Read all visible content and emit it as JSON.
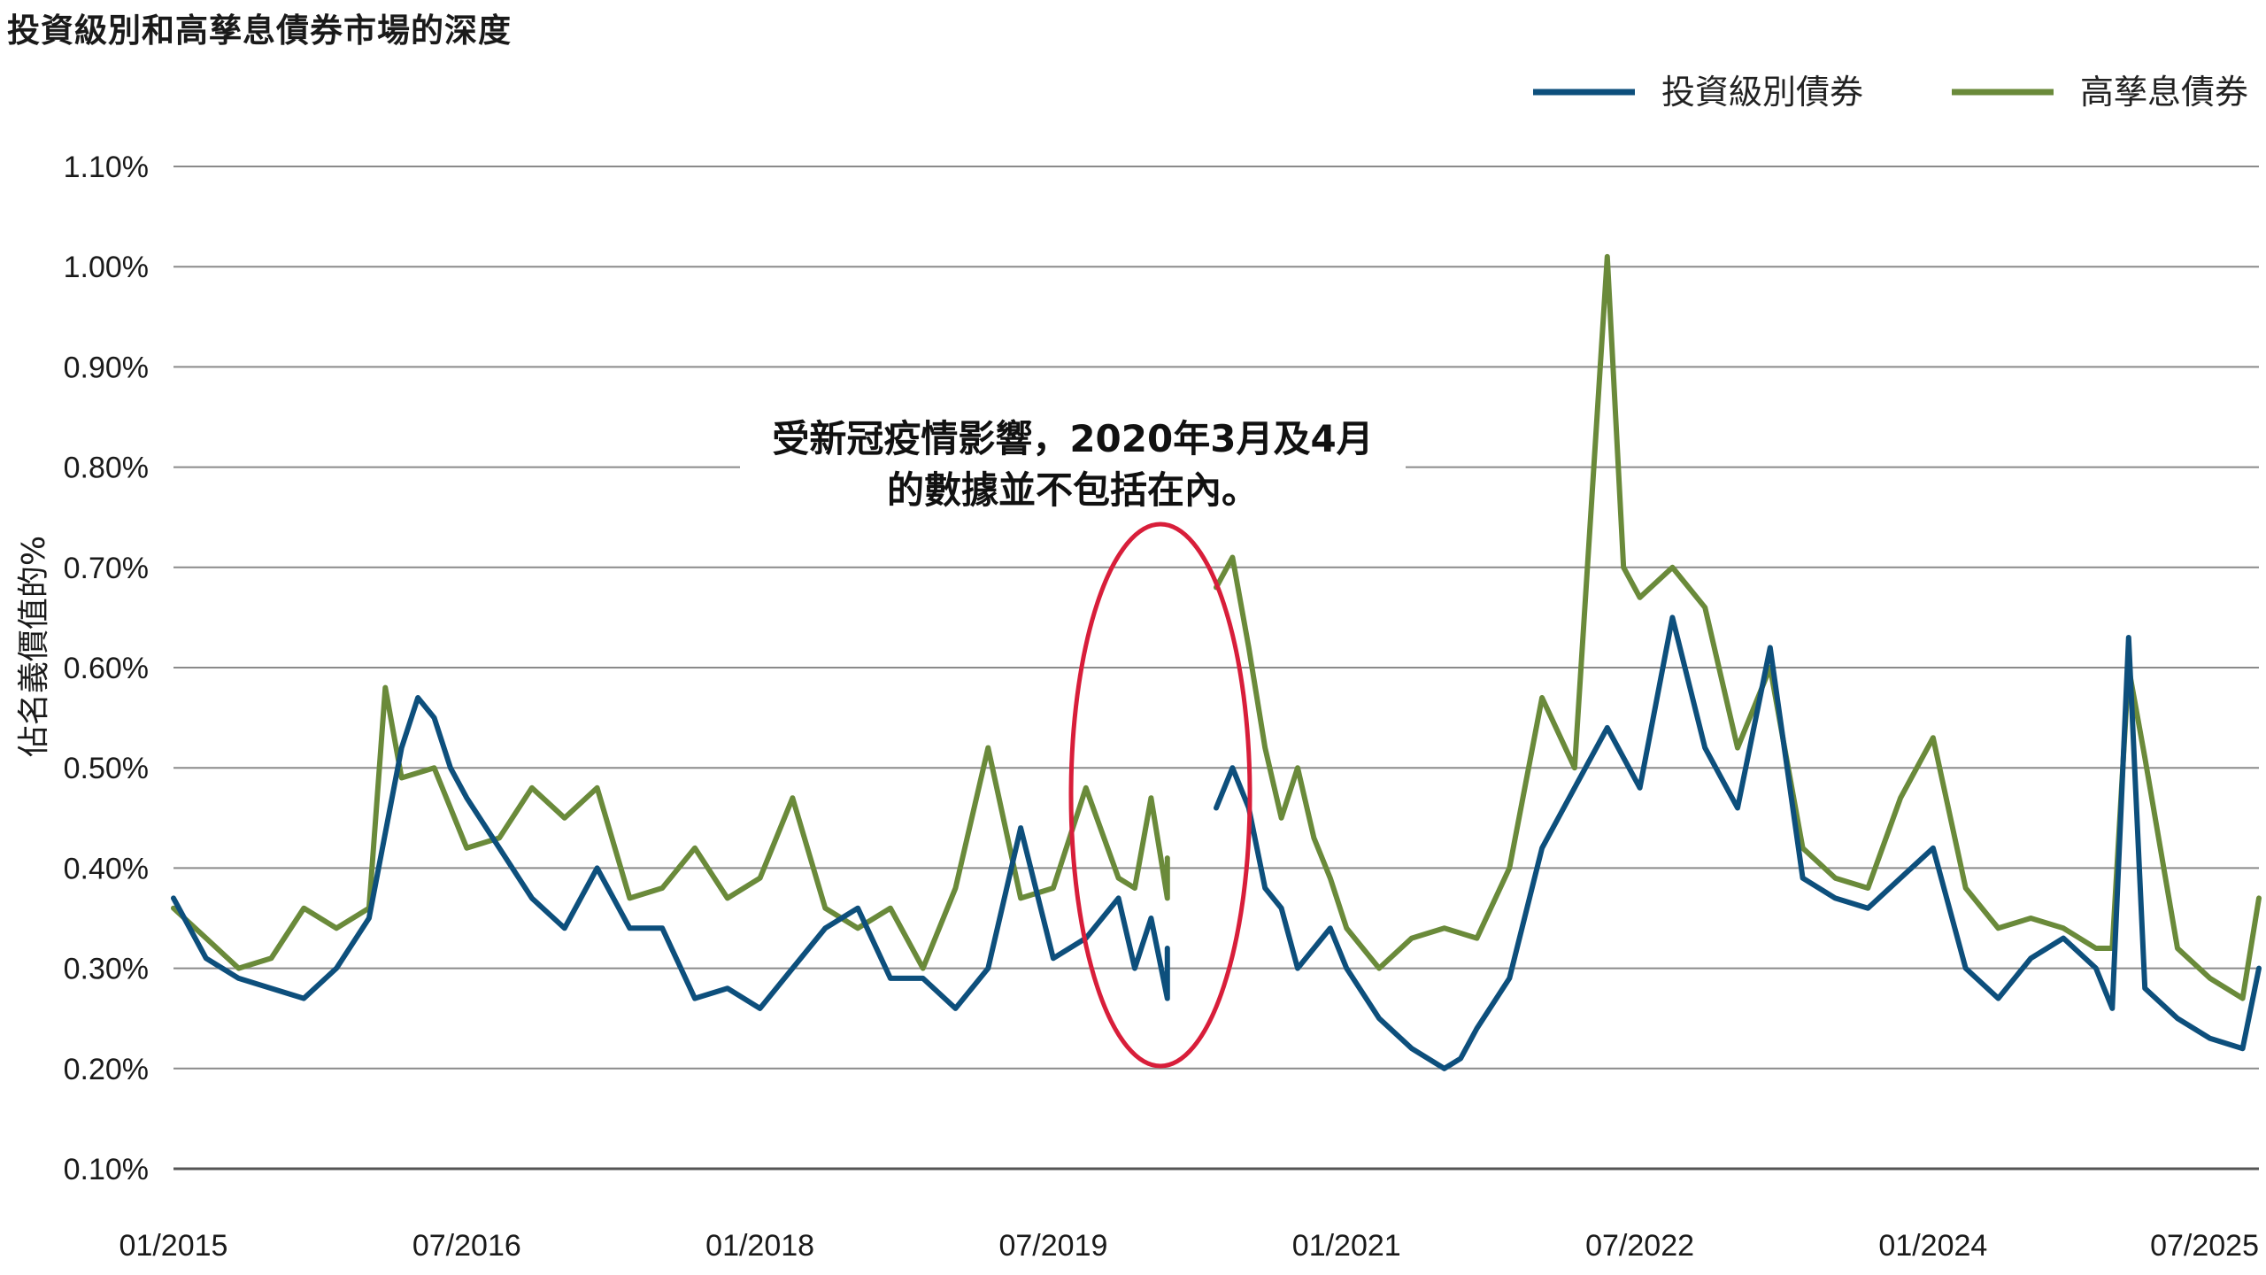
{
  "chart_data": {
    "type": "line",
    "title": "投資級別和高孳息債券市場的深度",
    "ylabel": "佔名義價值的%",
    "xlabel": "",
    "ylim": [
      0.1,
      1.1
    ],
    "y_ticks": [
      "0.10%",
      "0.20%",
      "0.30%",
      "0.40%",
      "0.50%",
      "0.60%",
      "0.70%",
      "0.80%",
      "0.90%",
      "1.00%",
      "1.10%"
    ],
    "x_ticks": [
      "01/2015",
      "07/2016",
      "01/2018",
      "07/2019",
      "01/2021",
      "07/2022",
      "01/2024",
      "07/2025"
    ],
    "x_range": [
      "01/2015",
      "09/2025"
    ],
    "grid": "horizontal",
    "legend": "top-right",
    "annotation": {
      "text": [
        "受新冠疫情影響，2020年3月及4月",
        "的數據並不包括在內。"
      ],
      "gap": [
        "03/2020",
        "04/2020"
      ]
    },
    "series": [
      {
        "name": "投資級別債券",
        "color": "#0d4f7c",
        "points": [
          [
            "01/2015",
            0.37
          ],
          [
            "03/2015",
            0.31
          ],
          [
            "05/2015",
            0.29
          ],
          [
            "07/2015",
            0.28
          ],
          [
            "09/2015",
            0.27
          ],
          [
            "11/2015",
            0.3
          ],
          [
            "01/2016",
            0.35
          ],
          [
            "03/2016",
            0.52
          ],
          [
            "04/2016",
            0.57
          ],
          [
            "05/2016",
            0.55
          ],
          [
            "06/2016",
            0.5
          ],
          [
            "07/2016",
            0.47
          ],
          [
            "09/2016",
            0.42
          ],
          [
            "11/2016",
            0.37
          ],
          [
            "01/2017",
            0.34
          ],
          [
            "03/2017",
            0.4
          ],
          [
            "05/2017",
            0.34
          ],
          [
            "07/2017",
            0.34
          ],
          [
            "09/2017",
            0.27
          ],
          [
            "11/2017",
            0.28
          ],
          [
            "01/2018",
            0.26
          ],
          [
            "03/2018",
            0.3
          ],
          [
            "05/2018",
            0.34
          ],
          [
            "07/2018",
            0.36
          ],
          [
            "09/2018",
            0.29
          ],
          [
            "11/2018",
            0.29
          ],
          [
            "01/2019",
            0.26
          ],
          [
            "03/2019",
            0.3
          ],
          [
            "05/2019",
            0.44
          ],
          [
            "07/2019",
            0.31
          ],
          [
            "09/2019",
            0.33
          ],
          [
            "11/2019",
            0.37
          ],
          [
            "12/2019",
            0.3
          ],
          [
            "01/2020",
            0.35
          ],
          [
            "02/2020",
            0.27
          ],
          [
            "02/2020",
            0.32
          ],
          [
            "05/2020",
            null
          ],
          [
            "05/2020",
            0.46
          ],
          [
            "06/2020",
            0.5
          ],
          [
            "07/2020",
            0.46
          ],
          [
            "08/2020",
            0.38
          ],
          [
            "09/2020",
            0.36
          ],
          [
            "10/2020",
            0.3
          ],
          [
            "11/2020",
            0.32
          ],
          [
            "12/2020",
            0.34
          ],
          [
            "01/2021",
            0.3
          ],
          [
            "03/2021",
            0.25
          ],
          [
            "05/2021",
            0.22
          ],
          [
            "07/2021",
            0.2
          ],
          [
            "08/2021",
            0.21
          ],
          [
            "09/2021",
            0.24
          ],
          [
            "11/2021",
            0.29
          ],
          [
            "01/2022",
            0.42
          ],
          [
            "03/2022",
            0.48
          ],
          [
            "05/2022",
            0.54
          ],
          [
            "07/2022",
            0.48
          ],
          [
            "09/2022",
            0.65
          ],
          [
            "11/2022",
            0.52
          ],
          [
            "01/2023",
            0.46
          ],
          [
            "03/2023",
            0.62
          ],
          [
            "05/2023",
            0.39
          ],
          [
            "07/2023",
            0.37
          ],
          [
            "09/2023",
            0.36
          ],
          [
            "11/2023",
            0.39
          ],
          [
            "01/2024",
            0.42
          ],
          [
            "03/2024",
            0.3
          ],
          [
            "05/2024",
            0.27
          ],
          [
            "07/2024",
            0.31
          ],
          [
            "09/2024",
            0.33
          ],
          [
            "11/2024",
            0.3
          ],
          [
            "12/2024",
            0.26
          ],
          [
            "01/2025",
            0.63
          ],
          [
            "02/2025",
            0.28
          ],
          [
            "04/2025",
            0.25
          ],
          [
            "06/2025",
            0.23
          ],
          [
            "08/2025",
            0.22
          ],
          [
            "09/2025",
            0.3
          ]
        ]
      },
      {
        "name": "高孳息債券",
        "color": "#6a8a3a",
        "points": [
          [
            "01/2015",
            0.36
          ],
          [
            "03/2015",
            0.33
          ],
          [
            "05/2015",
            0.3
          ],
          [
            "07/2015",
            0.31
          ],
          [
            "09/2015",
            0.36
          ],
          [
            "11/2015",
            0.34
          ],
          [
            "01/2016",
            0.36
          ],
          [
            "02/2016",
            0.58
          ],
          [
            "03/2016",
            0.49
          ],
          [
            "05/2016",
            0.5
          ],
          [
            "07/2016",
            0.42
          ],
          [
            "09/2016",
            0.43
          ],
          [
            "11/2016",
            0.48
          ],
          [
            "01/2017",
            0.45
          ],
          [
            "03/2017",
            0.48
          ],
          [
            "05/2017",
            0.37
          ],
          [
            "07/2017",
            0.38
          ],
          [
            "09/2017",
            0.42
          ],
          [
            "11/2017",
            0.37
          ],
          [
            "01/2018",
            0.39
          ],
          [
            "03/2018",
            0.47
          ],
          [
            "05/2018",
            0.36
          ],
          [
            "07/2018",
            0.34
          ],
          [
            "09/2018",
            0.36
          ],
          [
            "11/2018",
            0.3
          ],
          [
            "01/2019",
            0.38
          ],
          [
            "03/2019",
            0.52
          ],
          [
            "05/2019",
            0.37
          ],
          [
            "07/2019",
            0.38
          ],
          [
            "09/2019",
            0.48
          ],
          [
            "11/2019",
            0.39
          ],
          [
            "12/2019",
            0.38
          ],
          [
            "01/2020",
            0.47
          ],
          [
            "02/2020",
            0.37
          ],
          [
            "02/2020",
            0.41
          ],
          [
            "05/2020",
            null
          ],
          [
            "05/2020",
            0.68
          ],
          [
            "06/2020",
            0.71
          ],
          [
            "07/2020",
            0.62
          ],
          [
            "08/2020",
            0.52
          ],
          [
            "09/2020",
            0.45
          ],
          [
            "10/2020",
            0.5
          ],
          [
            "11/2020",
            0.43
          ],
          [
            "12/2020",
            0.39
          ],
          [
            "01/2021",
            0.34
          ],
          [
            "03/2021",
            0.3
          ],
          [
            "05/2021",
            0.33
          ],
          [
            "07/2021",
            0.34
          ],
          [
            "09/2021",
            0.33
          ],
          [
            "11/2021",
            0.4
          ],
          [
            "01/2022",
            0.57
          ],
          [
            "03/2022",
            0.5
          ],
          [
            "05/2022",
            1.01
          ],
          [
            "06/2022",
            0.7
          ],
          [
            "07/2022",
            0.67
          ],
          [
            "09/2022",
            0.7
          ],
          [
            "11/2022",
            0.66
          ],
          [
            "01/2023",
            0.52
          ],
          [
            "03/2023",
            0.6
          ],
          [
            "05/2023",
            0.42
          ],
          [
            "07/2023",
            0.39
          ],
          [
            "09/2023",
            0.38
          ],
          [
            "11/2023",
            0.47
          ],
          [
            "01/2024",
            0.53
          ],
          [
            "03/2024",
            0.38
          ],
          [
            "05/2024",
            0.34
          ],
          [
            "07/2024",
            0.35
          ],
          [
            "09/2024",
            0.34
          ],
          [
            "11/2024",
            0.32
          ],
          [
            "12/2024",
            0.32
          ],
          [
            "01/2025",
            0.6
          ],
          [
            "02/2025",
            0.51
          ],
          [
            "04/2025",
            0.32
          ],
          [
            "06/2025",
            0.29
          ],
          [
            "08/2025",
            0.27
          ],
          [
            "09/2025",
            0.37
          ]
        ]
      }
    ]
  }
}
